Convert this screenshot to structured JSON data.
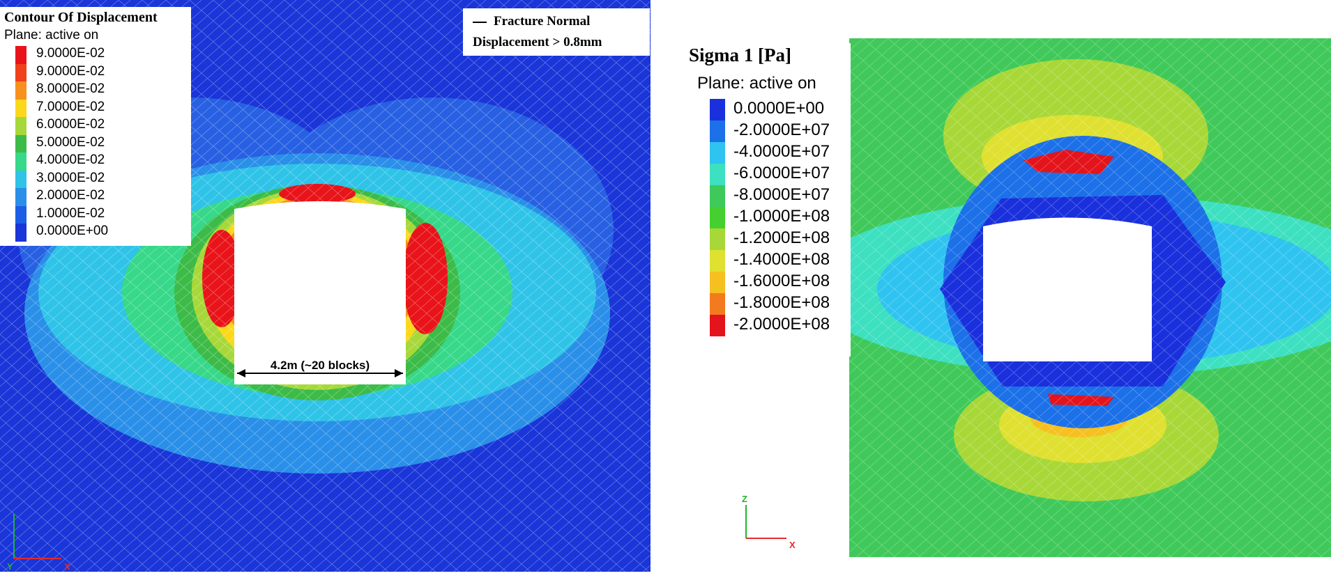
{
  "left": {
    "legend": {
      "title": "Contour Of Displacement",
      "subtitle": "Plane: active on",
      "levels": [
        {
          "label": "9.0000E-02",
          "color": "#e8141a"
        },
        {
          "label": "9.0000E-02",
          "color": "#f0401c"
        },
        {
          "label": "8.0000E-02",
          "color": "#f7901d"
        },
        {
          "label": "7.0000E-02",
          "color": "#fbd81c"
        },
        {
          "label": "6.0000E-02",
          "color": "#a7d83a"
        },
        {
          "label": "5.0000E-02",
          "color": "#3dbb48"
        },
        {
          "label": "4.0000E-02",
          "color": "#37d889"
        },
        {
          "label": "3.0000E-02",
          "color": "#2fc3e8"
        },
        {
          "label": "2.0000E-02",
          "color": "#2a8fe8"
        },
        {
          "label": "1.0000E-02",
          "color": "#1c5ee6"
        },
        {
          "label": "0.0000E+00",
          "color": "#1a35d8"
        }
      ]
    },
    "note_line1": "Fracture Normal",
    "note_line2": "Displacement > 0.8mm",
    "dimension_label": "4.2m (~20 blocks)",
    "axis_y": "Y",
    "axis_x": "X"
  },
  "right": {
    "legend": {
      "title": "Sigma 1  [Pa]",
      "subtitle": "Plane: active on",
      "levels": [
        {
          "label": "0.0000E+00",
          "color": "#1a30dc"
        },
        {
          "label": "-2.0000E+07",
          "color": "#1c70e8"
        },
        {
          "label": "-4.0000E+07",
          "color": "#2fc3f0"
        },
        {
          "label": "-6.0000E+07",
          "color": "#3de0c0"
        },
        {
          "label": "-8.0000E+07",
          "color": "#3ec95a"
        },
        {
          "label": "-1.0000E+08",
          "color": "#45d030"
        },
        {
          "label": "-1.2000E+08",
          "color": "#a8d838"
        },
        {
          "label": "-1.4000E+08",
          "color": "#dfe030"
        },
        {
          "label": "-1.6000E+08",
          "color": "#f6c020"
        },
        {
          "label": "-1.8000E+08",
          "color": "#f37a1e"
        },
        {
          "label": "-2.0000E+08",
          "color": "#e3141c"
        }
      ]
    },
    "axis_z": "Z",
    "axis_x": "X"
  }
}
